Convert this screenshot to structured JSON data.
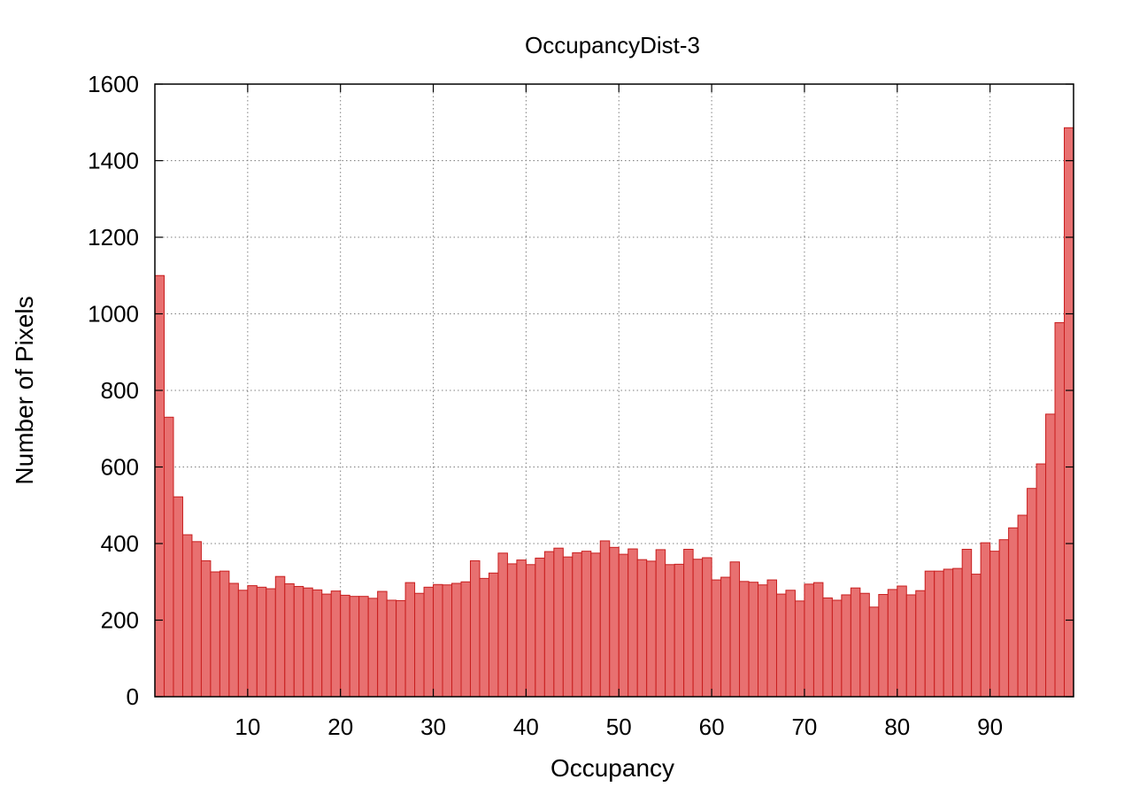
{
  "chart_data": {
    "type": "bar",
    "title": "OccupancyDist-3",
    "xlabel": "Occupancy",
    "ylabel": "Number of Pixels",
    "xlim": [
      0,
      99
    ],
    "ylim": [
      0,
      1600
    ],
    "xticks": [
      10,
      20,
      30,
      40,
      50,
      60,
      70,
      80,
      90
    ],
    "yticks": [
      0,
      200,
      400,
      600,
      800,
      1000,
      1200,
      1400,
      1600
    ],
    "grid": true,
    "bar_color": "#e87070",
    "bar_edge_color": "#c81e1e",
    "x": [
      0,
      1,
      2,
      3,
      4,
      5,
      6,
      7,
      8,
      9,
      10,
      11,
      12,
      13,
      14,
      15,
      16,
      17,
      18,
      19,
      20,
      21,
      22,
      23,
      24,
      25,
      26,
      27,
      28,
      29,
      30,
      31,
      32,
      33,
      34,
      35,
      36,
      37,
      38,
      39,
      40,
      41,
      42,
      43,
      44,
      45,
      46,
      47,
      48,
      49,
      50,
      51,
      52,
      53,
      54,
      55,
      56,
      57,
      58,
      59,
      60,
      61,
      62,
      63,
      64,
      65,
      66,
      67,
      68,
      69,
      70,
      71,
      72,
      73,
      74,
      75,
      76,
      77,
      78,
      79,
      80,
      81,
      82,
      83,
      84,
      85,
      86,
      87,
      88,
      89,
      90,
      91,
      92,
      93,
      94,
      95,
      96,
      97,
      98
    ],
    "values": [
      1100,
      730,
      522,
      423,
      405,
      355,
      326,
      328,
      296,
      278,
      290,
      286,
      282,
      314,
      295,
      288,
      284,
      279,
      268,
      276,
      265,
      262,
      262,
      257,
      275,
      252,
      251,
      298,
      270,
      286,
      293,
      292,
      296,
      300,
      355,
      309,
      323,
      375,
      347,
      357,
      345,
      362,
      379,
      388,
      365,
      376,
      380,
      375,
      407,
      390,
      372,
      386,
      358,
      354,
      384,
      345,
      346,
      385,
      359,
      363,
      305,
      312,
      352,
      301,
      299,
      292,
      305,
      268,
      278,
      250,
      294,
      298,
      258,
      252,
      266,
      284,
      270,
      234,
      267,
      280,
      289,
      266,
      277,
      328,
      328,
      333,
      335,
      385,
      320,
      402,
      380,
      410,
      441,
      474,
      544,
      608,
      738,
      977,
      1486
    ]
  }
}
